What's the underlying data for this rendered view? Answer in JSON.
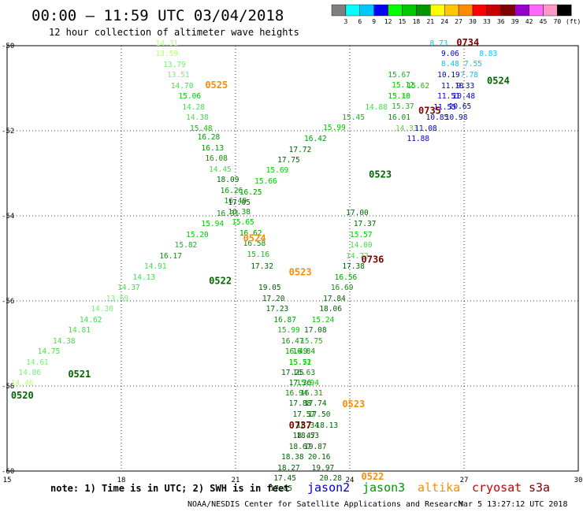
{
  "header": {
    "title": "00:00 – 11:59 UTC 03/04/2018",
    "subtitle": "12 hour collection of altimeter wave heights"
  },
  "colorbar": {
    "unit": "(ft)",
    "labels": [
      "3",
      "6",
      "9",
      "12",
      "15",
      "18",
      "21",
      "24",
      "27",
      "30",
      "33",
      "36",
      "39",
      "42",
      "45",
      "70"
    ],
    "colors": [
      "#7f7f7f",
      "#00ffff",
      "#00c8ff",
      "#0000ff",
      "#00ff00",
      "#00c800",
      "#009600",
      "#ffff00",
      "#ffc800",
      "#ff8c00",
      "#ff0000",
      "#c80000",
      "#7f0000",
      "#9600c8",
      "#ff64ff",
      "#ff96c8",
      "#000000"
    ]
  },
  "footer": {
    "note": "note: 1) Time is in UTC; 2) SWH is in feet",
    "satellites": [
      {
        "name": "jason2",
        "color": "#0000cc"
      },
      {
        "name": "jason3",
        "color": "#009600"
      },
      {
        "name": "altika",
        "color": "#ff8c00"
      },
      {
        "name": "cryosat",
        "color": "#c80000"
      },
      {
        "name": "s3a",
        "color": "#7f0000"
      }
    ],
    "credit": "NOAA/NESDIS Center for Satellite Applications and Research",
    "timestamp": "Mar  5 13:27:12 UTC 2018"
  },
  "chart_data": {
    "type": "scatter",
    "xlim": [
      15,
      30
    ],
    "ylim": [
      -60,
      -50
    ],
    "xticks": [
      15,
      18,
      21,
      24,
      27,
      30
    ],
    "yticks": [
      -50,
      -52,
      -54,
      -56,
      -58,
      -60
    ],
    "grid": true,
    "points": [
      {
        "x": 18.9,
        "y": -50.0,
        "v": "14.31",
        "c": "#b4ff78"
      },
      {
        "x": 18.9,
        "y": -50.24,
        "v": "13.59",
        "c": "#b4ff78"
      },
      {
        "x": 19.1,
        "y": -50.5,
        "v": "13.79",
        "c": "#78f078"
      },
      {
        "x": 19.2,
        "y": -50.74,
        "v": "13.51",
        "c": "#78f078"
      },
      {
        "x": 19.3,
        "y": -51.0,
        "v": "14.70",
        "c": "#46dc46"
      },
      {
        "x": 19.5,
        "y": -51.24,
        "v": "15.06",
        "c": "#00c800"
      },
      {
        "x": 19.6,
        "y": -51.5,
        "v": "14.28",
        "c": "#46dc46"
      },
      {
        "x": 19.7,
        "y": -51.74,
        "v": "14.38",
        "c": "#46dc46"
      },
      {
        "x": 19.8,
        "y": -52.0,
        "v": "15.48",
        "c": "#00c800"
      },
      {
        "x": 20.0,
        "y": -52.2,
        "v": "16.28",
        "c": "#009600"
      },
      {
        "x": 20.1,
        "y": -52.46,
        "v": "16.13",
        "c": "#009600"
      },
      {
        "x": 20.2,
        "y": -52.7,
        "v": "16.08",
        "c": "#009600"
      },
      {
        "x": 20.3,
        "y": -52.96,
        "v": "14.45",
        "c": "#46dc46"
      },
      {
        "x": 20.5,
        "y": -53.2,
        "v": "18.09",
        "c": "#006400"
      },
      {
        "x": 20.6,
        "y": -53.46,
        "v": "16.26",
        "c": "#009600"
      },
      {
        "x": 20.7,
        "y": -53.7,
        "v": "16.49",
        "c": "#009600"
      },
      {
        "x": 20.8,
        "y": -53.96,
        "v": "16.38",
        "c": "#009600"
      },
      {
        "x": 20.9,
        "y": -54.2,
        "v": "15.65",
        "c": "#00c800"
      },
      {
        "x": 21.1,
        "y": -54.46,
        "v": "16.62",
        "c": "#009600"
      },
      {
        "x": 21.2,
        "y": -54.7,
        "v": "16.58",
        "c": "#009600"
      },
      {
        "x": 21.3,
        "y": -54.96,
        "v": "15.16",
        "c": "#00c800"
      },
      {
        "x": 21.4,
        "y": -55.24,
        "v": "17.32",
        "c": "#006400"
      },
      {
        "x": 21.6,
        "y": -55.74,
        "v": "19.05",
        "c": "#006400"
      },
      {
        "x": 21.7,
        "y": -56.0,
        "v": "17.20",
        "c": "#006400"
      },
      {
        "x": 21.8,
        "y": -56.24,
        "v": "17.23",
        "c": "#006400"
      },
      {
        "x": 22.0,
        "y": -56.5,
        "v": "16.87",
        "c": "#009600"
      },
      {
        "x": 22.1,
        "y": -56.74,
        "v": "15.99",
        "c": "#00c800"
      },
      {
        "x": 22.2,
        "y": -57.0,
        "v": "16.47",
        "c": "#009600"
      },
      {
        "x": 22.3,
        "y": -57.24,
        "v": "16.49",
        "c": "#009600"
      },
      {
        "x": 22.4,
        "y": -57.5,
        "v": "15.52",
        "c": "#00c800"
      },
      {
        "x": 22.5,
        "y": -57.74,
        "v": "16.63",
        "c": "#009600"
      },
      {
        "x": 22.6,
        "y": -57.98,
        "v": "15.94",
        "c": "#00c800"
      },
      {
        "x": 22.7,
        "y": -58.22,
        "v": "16.31",
        "c": "#009600"
      },
      {
        "x": 22.8,
        "y": -58.46,
        "v": "17.74",
        "c": "#006400"
      },
      {
        "x": 22.9,
        "y": -58.72,
        "v": "17.50",
        "c": "#006400"
      },
      {
        "x": 23.1,
        "y": -58.98,
        "v": "18.13",
        "c": "#006400"
      },
      {
        "x": 22.5,
        "y": -59.22,
        "v": "18.47",
        "c": "#006400"
      },
      {
        "x": 22.4,
        "y": -59.48,
        "v": "18.67",
        "c": "#006400"
      },
      {
        "x": 22.2,
        "y": -59.72,
        "v": "18.38",
        "c": "#006400"
      },
      {
        "x": 22.1,
        "y": -59.98,
        "v": "18.27",
        "c": "#006400"
      },
      {
        "x": 22.0,
        "y": -60.22,
        "v": "17.45",
        "c": "#006400"
      },
      {
        "x": 21.9,
        "y": -60.46,
        "v": "17.85",
        "c": "#006400"
      },
      {
        "x": 15.1,
        "y": -57.98,
        "v": "14.46",
        "c": "#b4ff78"
      },
      {
        "x": 15.3,
        "y": -57.74,
        "v": "14.86",
        "c": "#78f078"
      },
      {
        "x": 15.5,
        "y": -57.5,
        "v": "14.61",
        "c": "#78f078"
      },
      {
        "x": 15.8,
        "y": -57.24,
        "v": "14.75",
        "c": "#46dc46"
      },
      {
        "x": 16.2,
        "y": -57.0,
        "v": "14.38",
        "c": "#46dc46"
      },
      {
        "x": 16.6,
        "y": -56.74,
        "v": "14.81",
        "c": "#46dc46"
      },
      {
        "x": 16.9,
        "y": -56.5,
        "v": "14.62",
        "c": "#46dc46"
      },
      {
        "x": 17.2,
        "y": -56.24,
        "v": "14.30",
        "c": "#78f078"
      },
      {
        "x": 17.6,
        "y": -56.0,
        "v": "13.69",
        "c": "#78f078"
      },
      {
        "x": 17.9,
        "y": -55.74,
        "v": "14.37",
        "c": "#46dc46"
      },
      {
        "x": 18.3,
        "y": -55.5,
        "v": "14.13",
        "c": "#46dc46"
      },
      {
        "x": 18.6,
        "y": -55.24,
        "v": "14.91",
        "c": "#46dc46"
      },
      {
        "x": 19.0,
        "y": -55.0,
        "v": "16.17",
        "c": "#009600"
      },
      {
        "x": 19.4,
        "y": -54.74,
        "v": "15.82",
        "c": "#00c800"
      },
      {
        "x": 19.7,
        "y": -54.5,
        "v": "15.20",
        "c": "#00c800"
      },
      {
        "x": 20.1,
        "y": -54.24,
        "v": "15.94",
        "c": "#00c800"
      },
      {
        "x": 20.5,
        "y": -54.0,
        "v": "16.31",
        "c": "#009600"
      },
      {
        "x": 20.8,
        "y": -53.74,
        "v": "17.05",
        "c": "#006400"
      },
      {
        "x": 21.1,
        "y": -53.5,
        "v": "16.25",
        "c": "#009600"
      },
      {
        "x": 21.5,
        "y": -53.24,
        "v": "15.66",
        "c": "#00c800"
      },
      {
        "x": 21.8,
        "y": -52.98,
        "v": "15.69",
        "c": "#00c800"
      },
      {
        "x": 22.1,
        "y": -52.74,
        "v": "17.75",
        "c": "#006400"
      },
      {
        "x": 22.4,
        "y": -52.5,
        "v": "17.72",
        "c": "#006400"
      },
      {
        "x": 22.8,
        "y": -52.24,
        "v": "16.42",
        "c": "#009600"
      },
      {
        "x": 23.3,
        "y": -51.98,
        "v": "15.99",
        "c": "#00c800"
      },
      {
        "x": 23.8,
        "y": -51.74,
        "v": "15.45",
        "c": "#00c800"
      },
      {
        "x": 24.4,
        "y": -51.5,
        "v": "14.88",
        "c": "#46dc46"
      },
      {
        "x": 25.0,
        "y": -51.24,
        "v": "13.88",
        "c": "#78f078"
      },
      {
        "x": 25.5,
        "y": -51.0,
        "v": "15.62",
        "c": "#00c800"
      },
      {
        "x": 23.9,
        "y": -53.98,
        "v": "17.00",
        "c": "#006400"
      },
      {
        "x": 24.1,
        "y": -54.24,
        "v": "17.37",
        "c": "#006400"
      },
      {
        "x": 24.0,
        "y": -54.5,
        "v": "15.57",
        "c": "#00c800"
      },
      {
        "x": 24.0,
        "y": -54.74,
        "v": "14.00",
        "c": "#46dc46"
      },
      {
        "x": 23.9,
        "y": -55.0,
        "v": "14.72",
        "c": "#46dc46"
      },
      {
        "x": 23.8,
        "y": -55.24,
        "v": "17.38",
        "c": "#006400"
      },
      {
        "x": 23.6,
        "y": -55.5,
        "v": "16.56",
        "c": "#009600"
      },
      {
        "x": 23.5,
        "y": -55.74,
        "v": "16.69",
        "c": "#009600"
      },
      {
        "x": 23.3,
        "y": -56.0,
        "v": "17.84",
        "c": "#006400"
      },
      {
        "x": 23.2,
        "y": -56.24,
        "v": "18.06",
        "c": "#006400"
      },
      {
        "x": 23.0,
        "y": -56.5,
        "v": "15.24",
        "c": "#00c800"
      },
      {
        "x": 22.8,
        "y": -56.74,
        "v": "17.08",
        "c": "#006400"
      },
      {
        "x": 22.7,
        "y": -57.0,
        "v": "15.75",
        "c": "#00c800"
      },
      {
        "x": 22.5,
        "y": -57.24,
        "v": "16.84",
        "c": "#009600"
      },
      {
        "x": 22.4,
        "y": -57.5,
        "v": "15.71",
        "c": "#00c800"
      },
      {
        "x": 22.2,
        "y": -57.74,
        "v": "17.25",
        "c": "#006400"
      },
      {
        "x": 22.4,
        "y": -57.98,
        "v": "17.36",
        "c": "#006400"
      },
      {
        "x": 22.3,
        "y": -58.22,
        "v": "16.94",
        "c": "#009600"
      },
      {
        "x": 22.4,
        "y": -58.46,
        "v": "17.88",
        "c": "#006400"
      },
      {
        "x": 22.5,
        "y": -58.72,
        "v": "17.57",
        "c": "#006400"
      },
      {
        "x": 22.6,
        "y": -58.98,
        "v": "18.34",
        "c": "#006400"
      },
      {
        "x": 22.6,
        "y": -59.22,
        "v": "18.53",
        "c": "#006400"
      },
      {
        "x": 22.8,
        "y": -59.48,
        "v": "19.87",
        "c": "#006400"
      },
      {
        "x": 22.9,
        "y": -59.72,
        "v": "20.16",
        "c": "#006400"
      },
      {
        "x": 23.0,
        "y": -59.98,
        "v": "19.97",
        "c": "#006400"
      },
      {
        "x": 23.2,
        "y": -60.22,
        "v": "20.28",
        "c": "#006400"
      },
      {
        "x": 25.0,
        "y": -50.74,
        "v": "15.67",
        "c": "#00c800"
      },
      {
        "x": 25.1,
        "y": -50.98,
        "v": "15.12",
        "c": "#00c800"
      },
      {
        "x": 25.0,
        "y": -51.24,
        "v": "15.10",
        "c": "#00c800"
      },
      {
        "x": 25.1,
        "y": -51.48,
        "v": "15.37",
        "c": "#00c800"
      },
      {
        "x": 25.0,
        "y": -51.74,
        "v": "16.01",
        "c": "#009600"
      },
      {
        "x": 25.2,
        "y": -52.0,
        "v": "14.33",
        "c": "#46dc46"
      },
      {
        "x": 26.1,
        "y": -50.0,
        "v": "8.73",
        "c": "#00c8ff"
      },
      {
        "x": 26.4,
        "y": -50.24,
        "v": "9.06",
        "c": "#0000cc"
      },
      {
        "x": 26.4,
        "y": -50.48,
        "v": "8.48",
        "c": "#00c8ff"
      },
      {
        "x": 26.3,
        "y": -50.74,
        "v": "10.19",
        "c": "#0000cc"
      },
      {
        "x": 26.4,
        "y": -51.0,
        "v": "11.18",
        "c": "#0000cc"
      },
      {
        "x": 26.3,
        "y": -51.24,
        "v": "11.51",
        "c": "#0000cc"
      },
      {
        "x": 26.2,
        "y": -51.5,
        "v": "11.55",
        "c": "#0000cc"
      },
      {
        "x": 26.0,
        "y": -51.74,
        "v": "10.85",
        "c": "#0000cc"
      },
      {
        "x": 25.7,
        "y": -52.0,
        "v": "11.08",
        "c": "#0000cc"
      },
      {
        "x": 25.5,
        "y": -52.24,
        "v": "11.88",
        "c": "#0000cc"
      },
      {
        "x": 27.4,
        "y": -50.24,
        "v": "8.83",
        "c": "#00c8ff"
      },
      {
        "x": 27.0,
        "y": -50.48,
        "v": "7.55",
        "c": "#00c8ff"
      },
      {
        "x": 26.9,
        "y": -50.74,
        "v": "7.78",
        "c": "#00c8ff"
      },
      {
        "x": 26.8,
        "y": -51.0,
        "v": "9.33",
        "c": "#0000cc"
      },
      {
        "x": 26.7,
        "y": -51.24,
        "v": "10.48",
        "c": "#0000cc"
      },
      {
        "x": 26.6,
        "y": -51.48,
        "v": "10.65",
        "c": "#0000cc"
      },
      {
        "x": 26.5,
        "y": -51.74,
        "v": "10.98",
        "c": "#0000cc"
      }
    ],
    "pass_labels": [
      {
        "x": 20.2,
        "y": -51.0,
        "v": "0525",
        "c": "#ff8c00"
      },
      {
        "x": 21.2,
        "y": -54.6,
        "v": "0524",
        "c": "#ff8c00"
      },
      {
        "x": 22.4,
        "y": -55.4,
        "v": "0523",
        "c": "#ff8c00"
      },
      {
        "x": 23.8,
        "y": -58.5,
        "v": "0523",
        "c": "#ff8c00"
      },
      {
        "x": 24.3,
        "y": -60.2,
        "v": "0522",
        "c": "#ff8c00"
      },
      {
        "x": 20.3,
        "y": -55.6,
        "v": "0522",
        "c": "#006400"
      },
      {
        "x": 16.6,
        "y": -57.8,
        "v": "0521",
        "c": "#006400"
      },
      {
        "x": 15.1,
        "y": -58.3,
        "v": "0520",
        "c": "#006400"
      },
      {
        "x": 24.5,
        "y": -53.1,
        "v": "0523",
        "c": "#006400"
      },
      {
        "x": 27.6,
        "y": -50.9,
        "v": "0524",
        "c": "#006400"
      },
      {
        "x": 26.8,
        "y": -50.0,
        "v": "0734",
        "c": "#7f0000"
      },
      {
        "x": 25.8,
        "y": -51.6,
        "v": "0735",
        "c": "#7f0000"
      },
      {
        "x": 24.3,
        "y": -55.1,
        "v": "0736",
        "c": "#7f0000"
      },
      {
        "x": 22.4,
        "y": -59.0,
        "v": "0737",
        "c": "#7f0000"
      }
    ]
  }
}
